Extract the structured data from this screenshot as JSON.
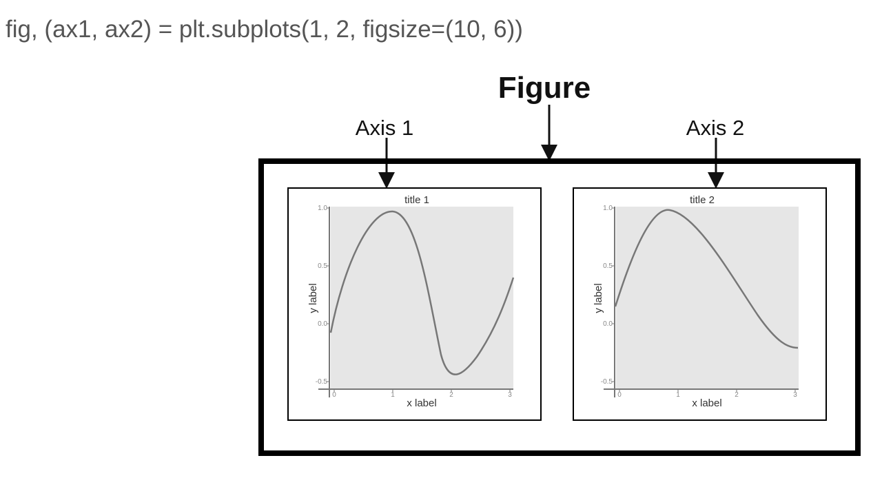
{
  "code": "fig, (ax1, ax2) = plt.subplots(1, 2, figsize=(10, 6))",
  "labels": {
    "figure": "Figure",
    "axis1": "Axis 1",
    "axis2": "Axis 2"
  },
  "subplots": [
    {
      "title": "title 1",
      "xlabel": "x label",
      "ylabel": "y label",
      "xticks": [
        0,
        1,
        2,
        3
      ],
      "yticks": [
        {
          "value": 1,
          "label": "1.0"
        },
        0.5,
        {
          "value": 0,
          "label": "0.0"
        },
        -0.5
      ]
    },
    {
      "title": "title 2",
      "xlabel": "x label",
      "ylabel": "y label",
      "xticks": [
        0,
        1,
        2,
        3
      ],
      "yticks": [
        {
          "value": 1,
          "label": "1.0"
        },
        0.5,
        {
          "value": 0,
          "label": "0.0"
        },
        -0.5
      ]
    }
  ]
}
